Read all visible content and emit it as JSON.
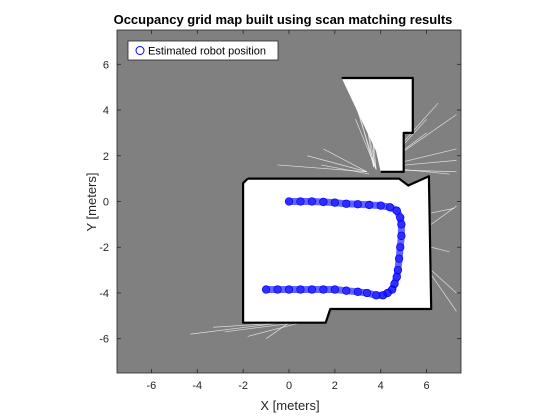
{
  "chart_data": {
    "type": "scatter",
    "title": "Occupancy grid map built using scan matching results",
    "xlabel": "X [meters]",
    "ylabel": "Y [meters]",
    "xlim": [
      -7.5,
      7.5
    ],
    "ylim": [
      -7.5,
      7.5
    ],
    "xticks": [
      -6,
      -4,
      -2,
      0,
      2,
      4,
      6
    ],
    "yticks": [
      -6,
      -4,
      -2,
      0,
      2,
      4,
      6
    ],
    "grid": false,
    "legend_placement": "top-left",
    "background_color": "#808080",
    "free_space_color": "#ffffff",
    "occupied_color": "#000000",
    "series": [
      {
        "name": "Estimated robot position",
        "marker": "circle",
        "color": "#0000ff",
        "x": [
          0.0,
          0.5,
          1.0,
          1.5,
          2.0,
          2.5,
          3.0,
          3.5,
          4.0,
          4.4,
          4.7,
          4.85,
          4.9,
          4.9,
          4.85,
          4.8,
          4.75,
          4.7,
          4.6,
          4.5,
          4.3,
          4.1,
          3.8,
          3.4,
          3.0,
          2.5,
          2.0,
          1.5,
          1.0,
          0.5,
          0.0,
          -0.5,
          -1.0
        ],
        "y": [
          0.0,
          0.0,
          0.0,
          -0.02,
          -0.05,
          -0.1,
          -0.12,
          -0.15,
          -0.18,
          -0.25,
          -0.4,
          -0.7,
          -1.0,
          -1.5,
          -2.0,
          -2.5,
          -3.0,
          -3.3,
          -3.6,
          -3.85,
          -4.0,
          -4.1,
          -4.1,
          -4.0,
          -3.95,
          -3.9,
          -3.85,
          -3.85,
          -3.85,
          -3.85,
          -3.85,
          -3.85,
          -3.85
        ]
      }
    ],
    "map": {
      "free_regions": [
        [
          [
            -1.8,
            1.0
          ],
          [
            4.8,
            1.0
          ],
          [
            5.2,
            0.7
          ],
          [
            6.1,
            1.1
          ],
          [
            6.2,
            -4.7
          ],
          [
            1.8,
            -4.7
          ],
          [
            1.6,
            -5.3
          ],
          [
            -2.0,
            -5.3
          ],
          [
            -2.0,
            0.8
          ]
        ],
        [
          [
            2.3,
            5.4
          ],
          [
            5.4,
            5.4
          ],
          [
            5.4,
            3.0
          ],
          [
            5.0,
            3.0
          ],
          [
            5.0,
            1.3
          ],
          [
            4.0,
            1.3
          ],
          [
            3.8,
            2.2
          ],
          [
            2.3,
            5.4
          ]
        ]
      ],
      "walls": [
        [
          [
            -1.8,
            1.0
          ],
          [
            4.8,
            1.0
          ],
          [
            5.2,
            0.7
          ],
          [
            6.1,
            1.1
          ],
          [
            6.2,
            -4.7
          ],
          [
            1.8,
            -4.7
          ],
          [
            1.6,
            -5.3
          ],
          [
            -2.0,
            -5.3
          ],
          [
            -2.0,
            0.8
          ],
          [
            -1.8,
            1.0
          ]
        ],
        [
          [
            4.0,
            1.3
          ],
          [
            5.0,
            1.3
          ],
          [
            5.0,
            3.0
          ],
          [
            5.4,
            3.0
          ],
          [
            5.4,
            5.4
          ],
          [
            2.3,
            5.4
          ]
        ]
      ],
      "scan_rays": [
        [
          3.8,
          1.4,
          2.6,
          5.2
        ],
        [
          3.8,
          1.4,
          3.0,
          5.3
        ],
        [
          3.8,
          1.4,
          3.4,
          5.3
        ],
        [
          3.8,
          1.4,
          2.9,
          3.6
        ],
        [
          4.0,
          1.5,
          6.0,
          3.0
        ],
        [
          4.0,
          1.5,
          7.3,
          3.8
        ],
        [
          4.0,
          1.5,
          7.3,
          2.3
        ],
        [
          4.0,
          1.5,
          7.3,
          1.8
        ],
        [
          4.0,
          1.5,
          7.0,
          1.2
        ],
        [
          4.0,
          1.5,
          6.5,
          4.3
        ],
        [
          3.4,
          1.3,
          0.8,
          2.0
        ],
        [
          3.4,
          1.3,
          -0.5,
          1.6
        ],
        [
          3.4,
          1.3,
          1.5,
          2.3
        ],
        [
          3.5,
          1.2,
          1.4,
          1.6
        ],
        [
          4.0,
          1.4,
          4.5,
          4.3
        ],
        [
          4.0,
          1.4,
          7.3,
          1.3
        ],
        [
          4.0,
          1.4,
          6.0,
          3.6
        ],
        [
          3.7,
          1.5,
          3.6,
          5.0
        ],
        [
          3.7,
          1.5,
          2.8,
          4.8
        ],
        [
          3.7,
          1.5,
          3.2,
          4.4
        ],
        [
          -0.3,
          -5.3,
          -4.3,
          -5.8
        ],
        [
          -0.2,
          -5.3,
          -3.3,
          -5.5
        ],
        [
          0.3,
          -5.3,
          -2.8,
          -5.7
        ],
        [
          0.8,
          -5.3,
          1.3,
          -5.0
        ],
        [
          0.5,
          -5.3,
          -1.8,
          -5.9
        ],
        [
          0.0,
          -5.3,
          -1.0,
          -6.0
        ],
        [
          6.2,
          -1.0,
          7.3,
          -0.2
        ],
        [
          6.2,
          -2.0,
          7.0,
          -2.2
        ],
        [
          6.2,
          -3.0,
          7.3,
          -4.0
        ],
        [
          6.2,
          -3.2,
          7.3,
          -4.8
        ],
        [
          6.2,
          -0.5,
          7.2,
          -0.3
        ]
      ]
    }
  }
}
